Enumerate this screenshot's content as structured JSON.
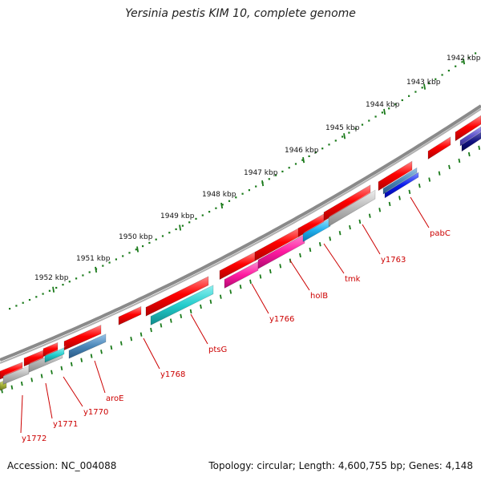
{
  "title": "Yersinia pestis KIM 10, complete genome",
  "accession": "Accession: NC_004088",
  "summary": "Topology: circular; Length: 4,600,755 bp; Genes: 4,148",
  "colors": {
    "backbone": "#8a8a8a",
    "scale_dots": "#1a7a1a",
    "label_text": "#cc0000",
    "gene_red": "#ff0000",
    "gene_cyan": "#22cccc",
    "gene_magenta": "#ff1aa0",
    "gene_gray": "#b8b8b8",
    "gene_steel": "#4a86b8",
    "gene_sky": "#22b0ee",
    "gene_blue": "#0a1aee",
    "gene_navy": "#101080",
    "gene_purple": "#5a50c8"
  },
  "scale": {
    "ticks": [
      "1942 kbp",
      "1943 kbp",
      "1944 kbp",
      "1945 kbp",
      "1946 kbp",
      "1947 kbp",
      "1948 kbp",
      "1949 kbp",
      "1950 kbp",
      "1951 kbp",
      "1952 kbp"
    ]
  },
  "genes": {
    "labels": [
      "pabC",
      "y1763",
      "tmk",
      "holB",
      "y1766",
      "ptsG",
      "y1768",
      "aroE",
      "y1770",
      "y1771",
      "y1772"
    ]
  }
}
